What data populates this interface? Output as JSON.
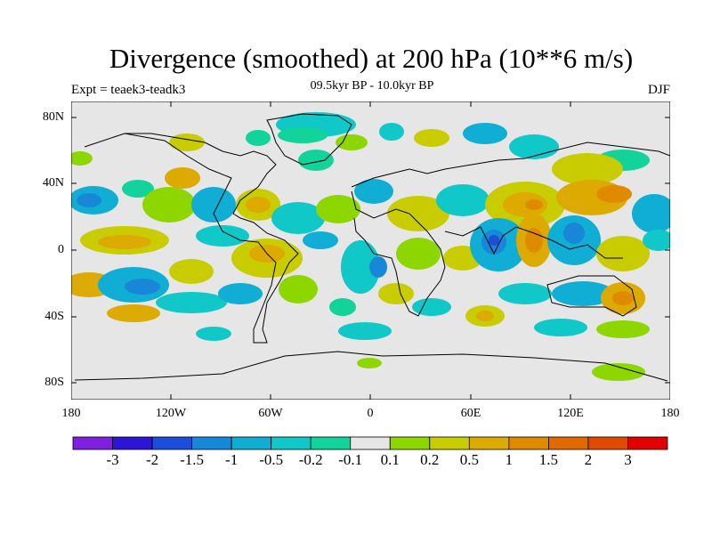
{
  "title": "Divergence (smoothed) at 200 hPa (10**6 m/s)",
  "experiment": "Expt = teaek3-teadk3",
  "period": "09.5kyr BP - 10.0kyr BP",
  "season": "DJF",
  "lat_labels": [
    "80N",
    "40N",
    "0",
    "40S",
    "80S"
  ],
  "lon_labels": [
    "180",
    "120W",
    "60W",
    "0",
    "60E",
    "120E",
    "180"
  ],
  "colorbar": {
    "labels": [
      "-3",
      "-2",
      "-1.5",
      "-1",
      "-0.5",
      "-0.2",
      "-0.1",
      "0.1",
      "0.2",
      "0.5",
      "1",
      "1.5",
      "2",
      "3"
    ],
    "colors": [
      "#7f1fe0",
      "#2c14d8",
      "#1d4ed9",
      "#1887d8",
      "#10aed4",
      "#10c8c8",
      "#12d39a",
      "#e6e6e6",
      "#8ed600",
      "#c8cc00",
      "#dcaa00",
      "#e08a00",
      "#e06a00",
      "#e04a00",
      "#e00000"
    ]
  },
  "map": {
    "land_fill": "#e6e6e6",
    "coastline_color": "#000000"
  }
}
